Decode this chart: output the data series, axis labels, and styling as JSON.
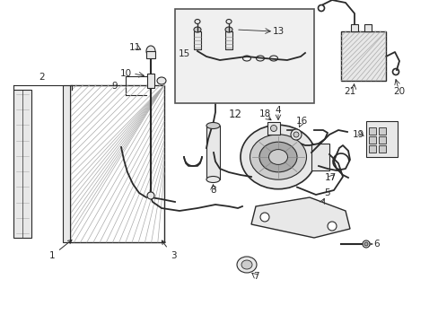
{
  "bg_color": "#ffffff",
  "line_color": "#2a2a2a",
  "gray1": "#888888",
  "gray2": "#aaaaaa",
  "gray3": "#cccccc",
  "gray4": "#e8e8e8",
  "inset_bg": "#f0f0f0",
  "fontsize": 7.5,
  "fig_w": 4.89,
  "fig_h": 3.6,
  "dpi": 100
}
